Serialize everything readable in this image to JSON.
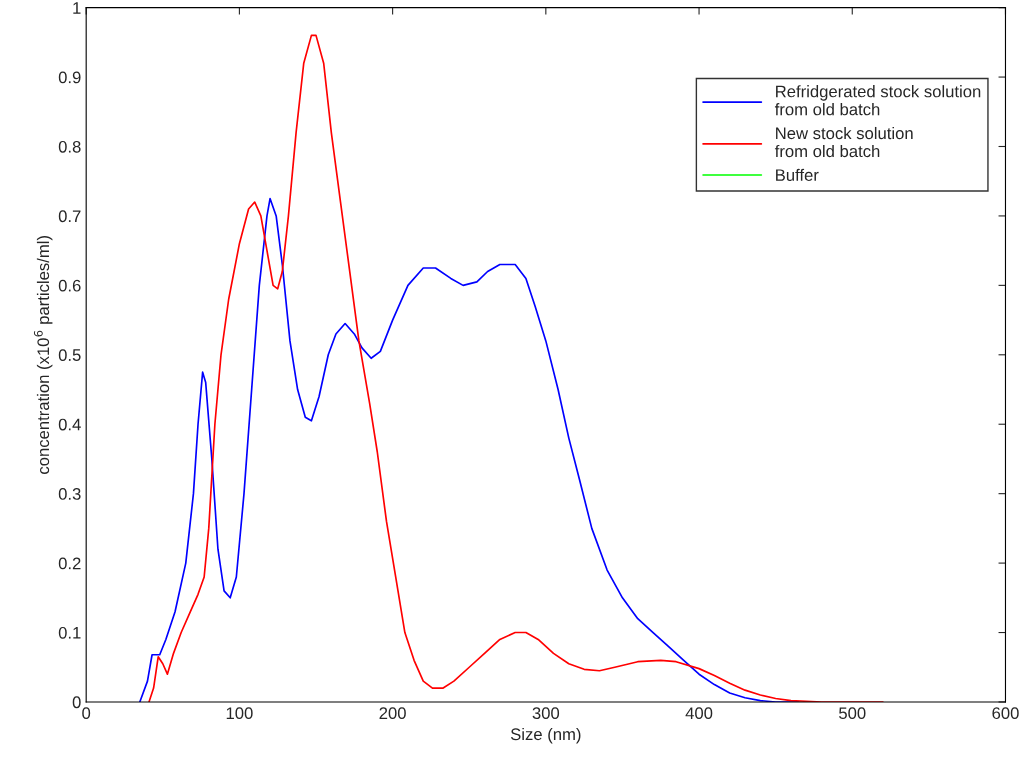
{
  "chart_data": {
    "type": "line",
    "xlabel": "Size (nm)",
    "ylabel": "concentration (x10$^{6}$ particles/ml)",
    "xlim": [
      0,
      600
    ],
    "xticks": [
      0,
      100,
      200,
      300,
      400,
      500,
      600
    ],
    "ylim": [
      0,
      1
    ],
    "yticks": [
      0,
      0.1,
      0.2,
      0.3,
      0.4,
      0.5,
      0.6,
      0.7,
      0.8,
      0.9,
      1
    ],
    "legend": "top right",
    "grid": false,
    "series": [
      {
        "name": "Refridgerated stock solution\nfrom old batch",
        "color": "#0000ff",
        "x": [
          35,
          40,
          43,
          48,
          52,
          58,
          65,
          70,
          73,
          76,
          78,
          82,
          86,
          90,
          94,
          98,
          103,
          108,
          113,
          118,
          120,
          124,
          128,
          133,
          138,
          143,
          147,
          152,
          158,
          163,
          169,
          175,
          180,
          186,
          192,
          200,
          210,
          220,
          228,
          238,
          246,
          255,
          262,
          270,
          280,
          287,
          293,
          300,
          308,
          315,
          322,
          330,
          340,
          350,
          360,
          370,
          380,
          390,
          400,
          410,
          420,
          430,
          440,
          450,
          465
        ],
        "values": [
          0,
          0.03,
          0.068,
          0.068,
          0.09,
          0.13,
          0.2,
          0.3,
          0.4,
          0.475,
          0.46,
          0.35,
          0.22,
          0.16,
          0.15,
          0.18,
          0.3,
          0.45,
          0.6,
          0.7,
          0.725,
          0.7,
          0.63,
          0.52,
          0.45,
          0.41,
          0.405,
          0.44,
          0.5,
          0.53,
          0.545,
          0.53,
          0.51,
          0.495,
          0.505,
          0.55,
          0.6,
          0.625,
          0.625,
          0.61,
          0.6,
          0.605,
          0.62,
          0.63,
          0.63,
          0.61,
          0.57,
          0.52,
          0.45,
          0.38,
          0.32,
          0.25,
          0.19,
          0.15,
          0.12,
          0.1,
          0.08,
          0.06,
          0.04,
          0.025,
          0.013,
          0.006,
          0.002,
          0,
          0
        ]
      },
      {
        "name": "New stock solution\nfrom old batch",
        "color": "#ff0000",
        "x": [
          41,
          44,
          47,
          50,
          53,
          57,
          62,
          68,
          73,
          77,
          80,
          84,
          88,
          93,
          100,
          106,
          110,
          114,
          118,
          122,
          125,
          128,
          132,
          137,
          142,
          147,
          150,
          155,
          160,
          166,
          172,
          178,
          185,
          190,
          196,
          202,
          208,
          214,
          220,
          226,
          233,
          240,
          250,
          260,
          270,
          280,
          287,
          295,
          305,
          315,
          325,
          335,
          345,
          360,
          375,
          385,
          400,
          410,
          420,
          430,
          440,
          450,
          460,
          470,
          480,
          520
        ],
        "values": [
          0,
          0.02,
          0.065,
          0.055,
          0.04,
          0.07,
          0.1,
          0.13,
          0.155,
          0.18,
          0.25,
          0.4,
          0.5,
          0.58,
          0.66,
          0.71,
          0.72,
          0.7,
          0.65,
          0.6,
          0.595,
          0.62,
          0.7,
          0.82,
          0.92,
          0.96,
          0.96,
          0.92,
          0.82,
          0.72,
          0.62,
          0.52,
          0.43,
          0.36,
          0.26,
          0.18,
          0.1,
          0.06,
          0.03,
          0.02,
          0.02,
          0.03,
          0.05,
          0.07,
          0.09,
          0.1,
          0.1,
          0.09,
          0.07,
          0.055,
          0.047,
          0.045,
          0.05,
          0.058,
          0.06,
          0.058,
          0.048,
          0.038,
          0.027,
          0.017,
          0.01,
          0.005,
          0.002,
          0.001,
          0,
          0
        ]
      },
      {
        "name": "Buffer",
        "color": "#00ff00"
      }
    ]
  }
}
